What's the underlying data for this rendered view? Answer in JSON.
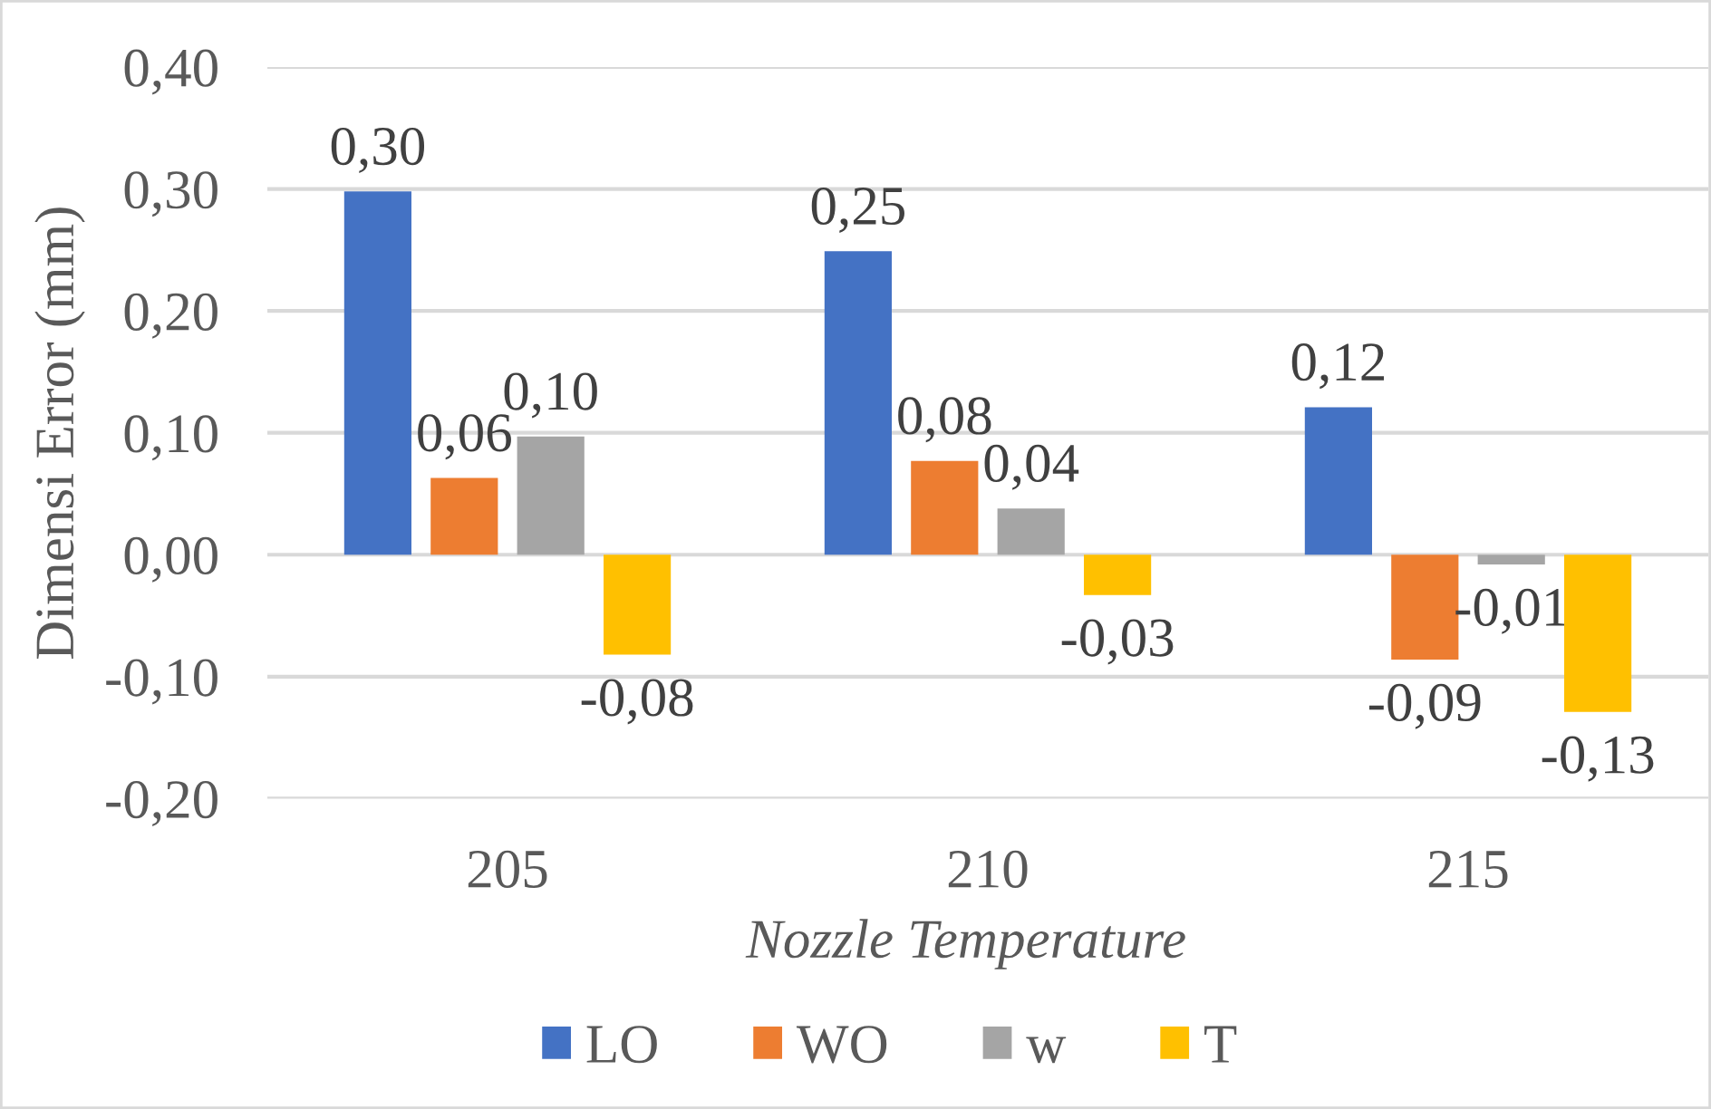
{
  "chart_data": {
    "type": "bar",
    "xlabel": "Nozzle Temperature",
    "ylabel": "Dimensi Error (mm)",
    "categories": [
      "205",
      "210",
      "215"
    ],
    "series": [
      {
        "name": "LO",
        "color": "#4472c4",
        "values": [
          0.298,
          0.249,
          0.121
        ],
        "value_labels": [
          "0,30",
          "0,25",
          "0,12"
        ]
      },
      {
        "name": "WO",
        "color": "#ed7d31",
        "values": [
          0.063,
          0.077,
          -0.086
        ],
        "value_labels": [
          "0,06",
          "0,08",
          "-0,09"
        ]
      },
      {
        "name": "w",
        "color": "#a5a5a5",
        "values": [
          0.097,
          0.038,
          -0.008
        ],
        "value_labels": [
          "0,10",
          "0,04",
          "-0,01"
        ]
      },
      {
        "name": "T",
        "color": "#ffc000",
        "values": [
          -0.082,
          -0.033,
          -0.129
        ],
        "value_labels": [
          "-0,08",
          "-0,03",
          "-0,13"
        ]
      }
    ],
    "ylim": [
      -0.2,
      0.4
    ],
    "yticks": [
      {
        "value": -0.2,
        "label": "-0,20"
      },
      {
        "value": -0.1,
        "label": "-0,10"
      },
      {
        "value": 0,
        "label": "0,00"
      },
      {
        "value": 0.1,
        "label": "0,10"
      },
      {
        "value": 0.2,
        "label": "0,20"
      },
      {
        "value": 0.3,
        "label": "0,30"
      },
      {
        "value": 0.4,
        "label": "0,40"
      }
    ],
    "grid": "y",
    "legend": "bottom"
  }
}
